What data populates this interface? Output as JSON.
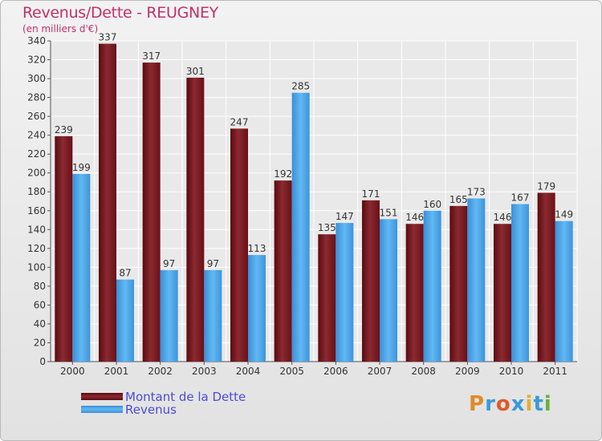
{
  "title": "Revenus/Dette - REUGNEY",
  "unit_label": "(en milliers d'€)",
  "logo_text": "Proxiti",
  "colors": {
    "dette": "#7a1a22",
    "revenus": "#4aa3e6",
    "title": "#c0306a",
    "legend_text": "#4b4bd8"
  },
  "chart_data": {
    "type": "bar",
    "title": "Revenus/Dette - REUGNEY",
    "ylabel": "(en milliers d'€)",
    "xlabel": "",
    "ylim": [
      0,
      340
    ],
    "yticks": [
      0,
      20,
      40,
      60,
      80,
      100,
      120,
      140,
      160,
      180,
      200,
      220,
      240,
      260,
      280,
      300,
      320,
      340
    ],
    "grid": true,
    "legend_position": "bottom-left",
    "categories": [
      "2000",
      "2001",
      "2002",
      "2003",
      "2004",
      "2005",
      "2006",
      "2007",
      "2008",
      "2009",
      "2010",
      "2011"
    ],
    "series": [
      {
        "name": "Montant de la Dette",
        "values": [
          239,
          337,
          317,
          301,
          247,
          192,
          135,
          171,
          146,
          165,
          146,
          179
        ]
      },
      {
        "name": "Revenus",
        "values": [
          199,
          87,
          97,
          97,
          113,
          285,
          147,
          151,
          160,
          173,
          167,
          149
        ]
      }
    ]
  }
}
